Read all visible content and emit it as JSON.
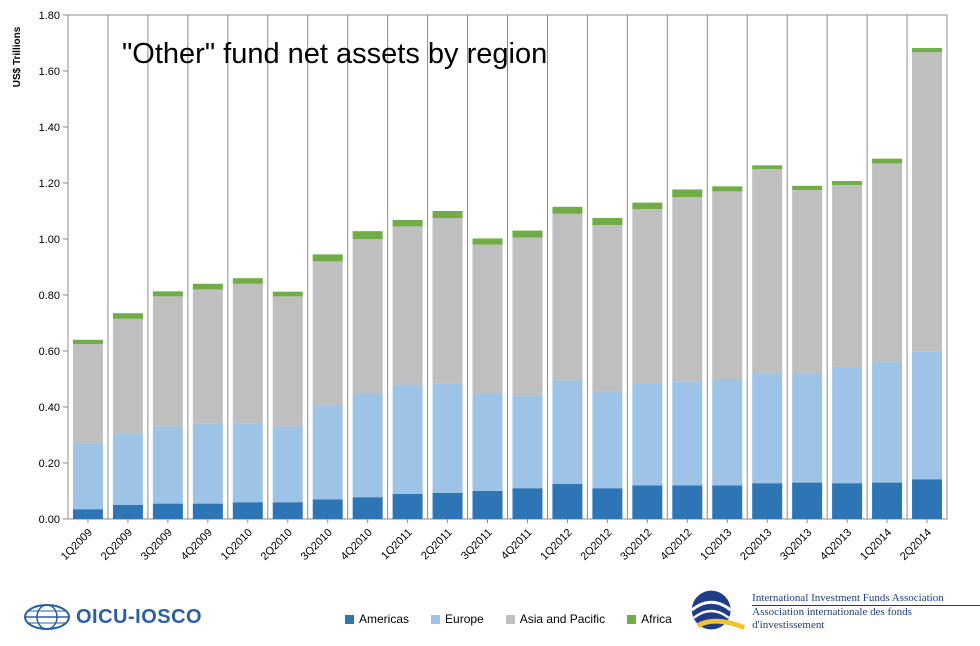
{
  "chart_data": {
    "type": "bar",
    "stacked": true,
    "title": "\"Other\"  fund net assets by region",
    "ylabel": "US$ Trillions",
    "ylim": [
      0,
      1.8
    ],
    "yticks": [
      "0.00",
      "0.20",
      "0.40",
      "0.60",
      "0.80",
      "1.00",
      "1.20",
      "1.40",
      "1.60",
      "1.80"
    ],
    "grid": "vertical",
    "legend_position": "bottom",
    "categories": [
      "1Q2009",
      "2Q2009",
      "3Q2009",
      "4Q2009",
      "1Q2010",
      "2Q2010",
      "3Q2010",
      "4Q2010",
      "1Q2011",
      "2Q2011",
      "3Q2011",
      "4Q2011",
      "1Q2012",
      "2Q2012",
      "3Q2012",
      "4Q2012",
      "1Q2013",
      "2Q2013",
      "3Q2013",
      "4Q2013",
      "1Q2014",
      "2Q2014"
    ],
    "series": [
      {
        "name": "Americas",
        "color": "#2e75b6",
        "values": [
          0.035,
          0.05,
          0.055,
          0.055,
          0.06,
          0.06,
          0.07,
          0.078,
          0.09,
          0.093,
          0.1,
          0.11,
          0.125,
          0.11,
          0.12,
          0.12,
          0.12,
          0.128,
          0.13,
          0.128,
          0.13,
          0.142
        ]
      },
      {
        "name": "Europe",
        "color": "#9dc3e6",
        "values": [
          0.235,
          0.255,
          0.275,
          0.285,
          0.28,
          0.27,
          0.335,
          0.372,
          0.39,
          0.392,
          0.35,
          0.33,
          0.37,
          0.345,
          0.362,
          0.37,
          0.38,
          0.392,
          0.39,
          0.415,
          0.43,
          0.455
        ]
      },
      {
        "name": "Asia and Pacific",
        "color": "#bfbfbf",
        "values": [
          0.355,
          0.41,
          0.465,
          0.48,
          0.5,
          0.465,
          0.515,
          0.55,
          0.565,
          0.59,
          0.53,
          0.565,
          0.595,
          0.595,
          0.625,
          0.66,
          0.67,
          0.73,
          0.655,
          0.65,
          0.71,
          1.07
        ]
      },
      {
        "name": "Africa",
        "color": "#70ad47",
        "values": [
          0.015,
          0.02,
          0.018,
          0.02,
          0.02,
          0.017,
          0.025,
          0.028,
          0.023,
          0.025,
          0.022,
          0.025,
          0.025,
          0.025,
          0.023,
          0.027,
          0.018,
          0.013,
          0.015,
          0.014,
          0.017,
          0.015
        ]
      }
    ]
  },
  "logos": {
    "left": "OICU-IOSCO",
    "right_line1": "International Investment Funds Association",
    "right_line2": "Association internationale des fonds d'investissement"
  }
}
